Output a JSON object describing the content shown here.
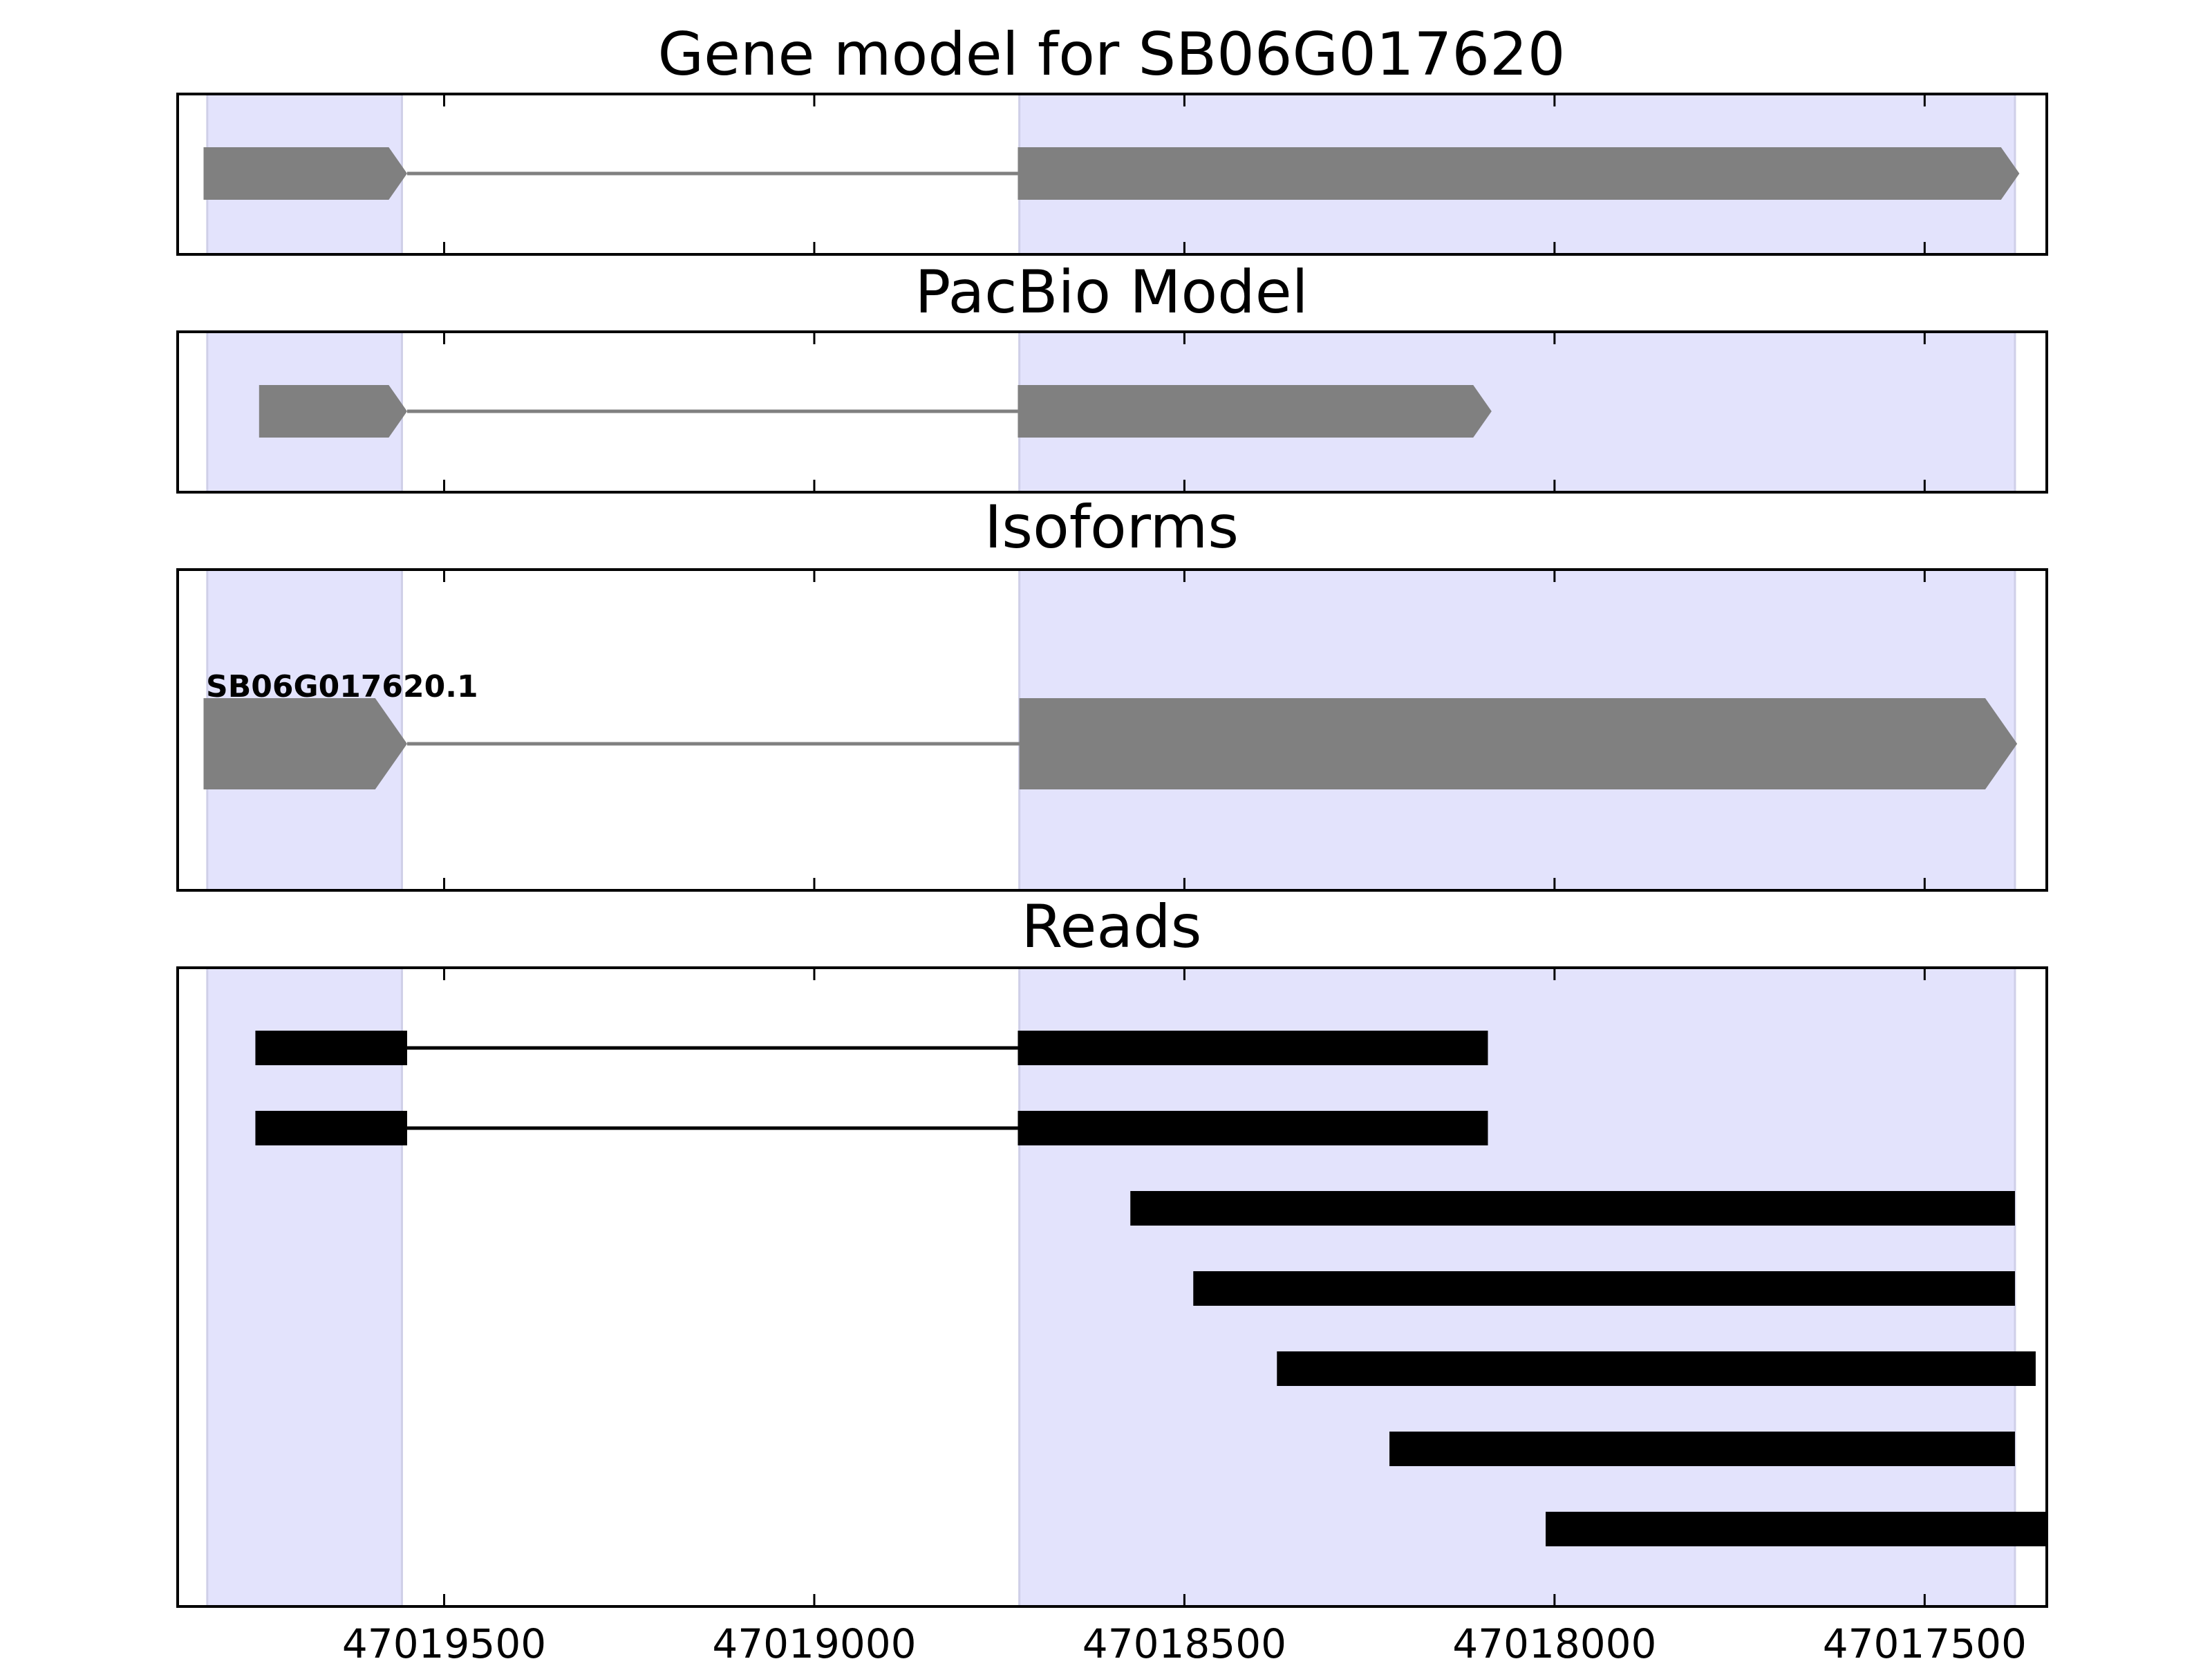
{
  "chart_data": {
    "type": "gene_model",
    "x_axis": {
      "reversed": true,
      "xlim": [
        47019860,
        47017335
      ],
      "ticks": [
        47019500,
        47019000,
        47018500,
        47018000,
        47017500
      ],
      "tick_labels": [
        "47019500",
        "47019000",
        "47018500",
        "47018000",
        "47017500"
      ]
    },
    "colors": {
      "feature": "#808080",
      "read": "#000000",
      "highlight": "#e3e3fc",
      "highlight_edge": "#cfcfe8",
      "frame": "#000000"
    },
    "highlight_regions": [
      [
        47019820,
        47019557
      ],
      [
        47018723,
        47017378
      ]
    ],
    "panels": [
      {
        "key": "gene_model",
        "title": "Gene model for SB06G017620",
        "feature_color": "#808080",
        "transcripts": [
          {
            "label": "",
            "exons": [
              [
                47019825,
                47019550
              ],
              [
                47018725,
                47017372
              ]
            ]
          }
        ]
      },
      {
        "key": "pacbio",
        "title": "PacBio Model",
        "feature_color": "#808080",
        "transcripts": [
          {
            "label": "",
            "exons": [
              [
                47019750,
                47019550
              ],
              [
                47018725,
                47018085
              ]
            ]
          }
        ]
      },
      {
        "key": "isoforms",
        "title": "Isoforms",
        "feature_color": "#808080",
        "transcripts": [
          {
            "label": "SB06G017620.1",
            "exons": [
              [
                47019825,
                47019550
              ],
              [
                47018723,
                47017375
              ]
            ]
          }
        ]
      },
      {
        "key": "reads",
        "title": "Reads",
        "feature_color": "#000000",
        "reads": [
          {
            "blocks": [
              [
                47019755,
                47019550
              ],
              [
                47018725,
                47018090
              ]
            ]
          },
          {
            "blocks": [
              [
                47019755,
                47019550
              ],
              [
                47018725,
                47018090
              ]
            ]
          },
          {
            "blocks": [
              [
                47018573,
                47017378
              ]
            ]
          },
          {
            "blocks": [
              [
                47018488,
                47017378
              ]
            ]
          },
          {
            "blocks": [
              [
                47018375,
                47017350
              ]
            ]
          },
          {
            "blocks": [
              [
                47018223,
                47017378
              ]
            ]
          },
          {
            "blocks": [
              [
                47018012,
                47017335
              ]
            ]
          }
        ]
      }
    ]
  }
}
